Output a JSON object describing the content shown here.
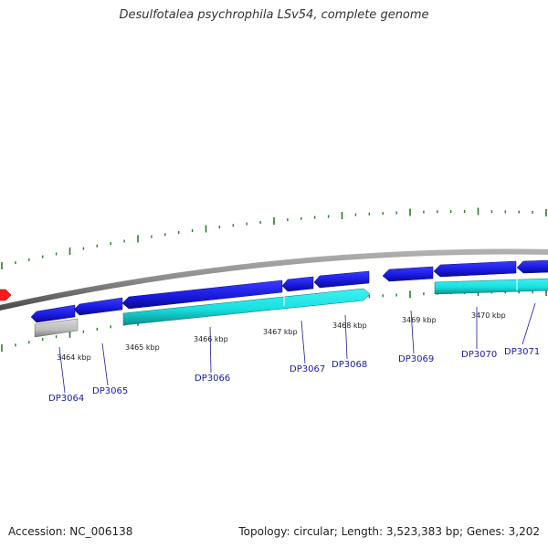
{
  "title": "Desulfotalea psychrophila LSv54, complete genome",
  "footer": {
    "accession": "Accession: NC_006138",
    "summary": "Topology: circular; Length: 3,523,383 bp; Genes: 3,202"
  },
  "colors": {
    "backbone": "#8c8c8c",
    "gene_forward": "#1e1ee6",
    "gene_reverse": "#19e6e6",
    "gene_other": "#c0c0c0",
    "gene_highlight": "#ff1a1a",
    "ticks": "#2a7a2a",
    "label": "#1a1aa6"
  },
  "tick_labels": [
    "3464 kbp",
    "3465 kbp",
    "3466 kbp",
    "3467 kbp",
    "3468 kbp",
    "3469 kbp",
    "3470 kbp"
  ],
  "gene_labels": [
    "DP3064",
    "DP3065",
    "DP3066",
    "DP3067",
    "DP3068",
    "DP3069",
    "DP3070",
    "DP3071"
  ]
}
